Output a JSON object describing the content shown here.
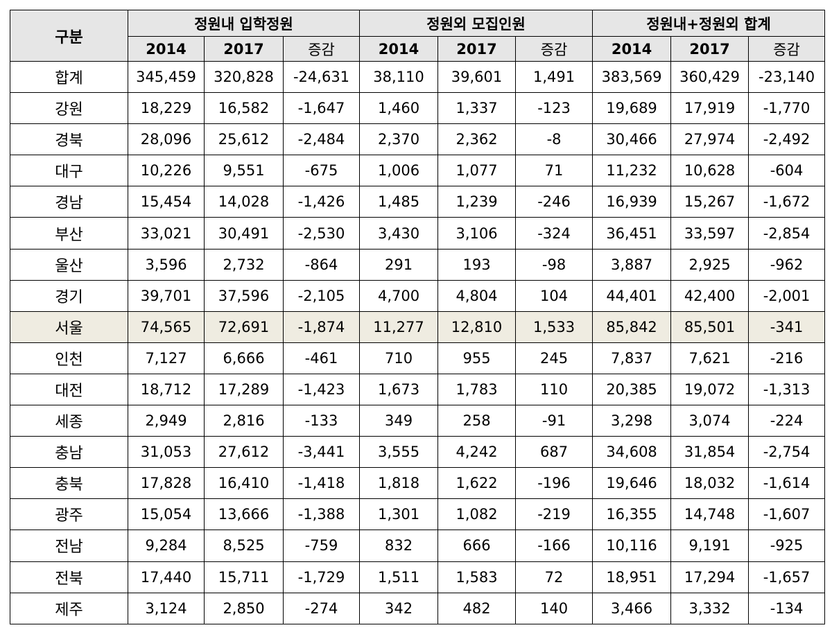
{
  "header": {
    "corner": "구분",
    "groups": [
      "정원내 입학정원",
      "정원외 모집인원",
      "정원내+정원외 합계"
    ],
    "subcols": [
      "2014",
      "2017",
      "증감"
    ]
  },
  "rows": [
    {
      "region": "합계",
      "v": [
        "345,459",
        "320,828",
        "-24,631",
        "38,110",
        "39,601",
        "1,491",
        "383,569",
        "360,429",
        "-23,140"
      ]
    },
    {
      "region": "강원",
      "v": [
        "18,229",
        "16,582",
        "-1,647",
        "1,460",
        "1,337",
        "-123",
        "19,689",
        "17,919",
        "-1,770"
      ]
    },
    {
      "region": "경북",
      "v": [
        "28,096",
        "25,612",
        "-2,484",
        "2,370",
        "2,362",
        "-8",
        "30,466",
        "27,974",
        "-2,492"
      ]
    },
    {
      "region": "대구",
      "v": [
        "10,226",
        "9,551",
        "-675",
        "1,006",
        "1,077",
        "71",
        "11,232",
        "10,628",
        "-604"
      ]
    },
    {
      "region": "경남",
      "v": [
        "15,454",
        "14,028",
        "-1,426",
        "1,485",
        "1,239",
        "-246",
        "16,939",
        "15,267",
        "-1,672"
      ]
    },
    {
      "region": "부산",
      "v": [
        "33,021",
        "30,491",
        "-2,530",
        "3,430",
        "3,106",
        "-324",
        "36,451",
        "33,597",
        "-2,854"
      ]
    },
    {
      "region": "울산",
      "v": [
        "3,596",
        "2,732",
        "-864",
        "291",
        "193",
        "-98",
        "3,887",
        "2,925",
        "-962"
      ]
    },
    {
      "region": "경기",
      "v": [
        "39,701",
        "37,596",
        "-2,105",
        "4,700",
        "4,804",
        "104",
        "44,401",
        "42,400",
        "-2,001"
      ]
    },
    {
      "region": "서울",
      "v": [
        "74,565",
        "72,691",
        "-1,874",
        "11,277",
        "12,810",
        "1,533",
        "85,842",
        "85,501",
        "-341"
      ],
      "highlight": true
    },
    {
      "region": "인천",
      "v": [
        "7,127",
        "6,666",
        "-461",
        "710",
        "955",
        "245",
        "7,837",
        "7,621",
        "-216"
      ]
    },
    {
      "region": "대전",
      "v": [
        "18,712",
        "17,289",
        "-1,423",
        "1,673",
        "1,783",
        "110",
        "20,385",
        "19,072",
        "-1,313"
      ]
    },
    {
      "region": "세종",
      "v": [
        "2,949",
        "2,816",
        "-133",
        "349",
        "258",
        "-91",
        "3,298",
        "3,074",
        "-224"
      ]
    },
    {
      "region": "충남",
      "v": [
        "31,053",
        "27,612",
        "-3,441",
        "3,555",
        "4,242",
        "687",
        "34,608",
        "31,854",
        "-2,754"
      ]
    },
    {
      "region": "충북",
      "v": [
        "17,828",
        "16,410",
        "-1,418",
        "1,818",
        "1,622",
        "-196",
        "19,646",
        "18,032",
        "-1,614"
      ]
    },
    {
      "region": "광주",
      "v": [
        "15,054",
        "13,666",
        "-1,388",
        "1,301",
        "1,082",
        "-219",
        "16,355",
        "14,748",
        "-1,607"
      ]
    },
    {
      "region": "전남",
      "v": [
        "9,284",
        "8,525",
        "-759",
        "832",
        "666",
        "-166",
        "10,116",
        "9,191",
        "-925"
      ]
    },
    {
      "region": "전북",
      "v": [
        "17,440",
        "15,711",
        "-1,729",
        "1,511",
        "1,583",
        "72",
        "18,951",
        "17,294",
        "-1,657"
      ]
    },
    {
      "region": "제주",
      "v": [
        "3,124",
        "2,850",
        "-274",
        "342",
        "482",
        "140",
        "3,466",
        "3,332",
        "-134"
      ]
    }
  ],
  "colors": {
    "header_bg": "#e6e6e6",
    "highlight_bg": "#efece1",
    "border": "#000000"
  }
}
